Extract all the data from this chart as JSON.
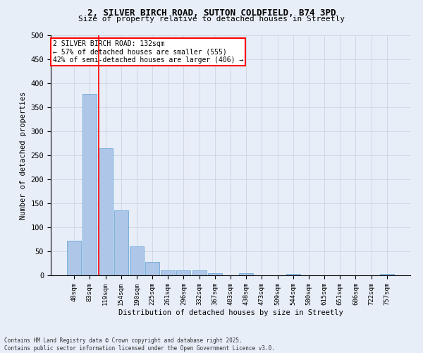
{
  "title_line1": "2, SILVER BIRCH ROAD, SUTTON COLDFIELD, B74 3PD",
  "title_line2": "Size of property relative to detached houses in Streetly",
  "xlabel": "Distribution of detached houses by size in Streetly",
  "ylabel": "Number of detached properties",
  "categories": [
    "48sqm",
    "83sqm",
    "119sqm",
    "154sqm",
    "190sqm",
    "225sqm",
    "261sqm",
    "296sqm",
    "332sqm",
    "367sqm",
    "403sqm",
    "438sqm",
    "473sqm",
    "509sqm",
    "544sqm",
    "580sqm",
    "615sqm",
    "651sqm",
    "686sqm",
    "722sqm",
    "757sqm"
  ],
  "values": [
    72,
    378,
    265,
    135,
    60,
    28,
    10,
    10,
    10,
    5,
    0,
    5,
    0,
    0,
    3,
    0,
    0,
    0,
    0,
    0,
    3
  ],
  "bar_color": "#aec6e8",
  "bar_edge_color": "#5a9fd4",
  "grid_color": "#d0d8e8",
  "background_color": "#e8eef8",
  "red_line_index": 2,
  "annotation_text": "2 SILVER BIRCH ROAD: 132sqm\n← 57% of detached houses are smaller (555)\n42% of semi-detached houses are larger (406) →",
  "ylim": [
    0,
    500
  ],
  "yticks": [
    0,
    50,
    100,
    150,
    200,
    250,
    300,
    350,
    400,
    450,
    500
  ],
  "footer_line1": "Contains HM Land Registry data © Crown copyright and database right 2025.",
  "footer_line2": "Contains public sector information licensed under the Open Government Licence v3.0."
}
